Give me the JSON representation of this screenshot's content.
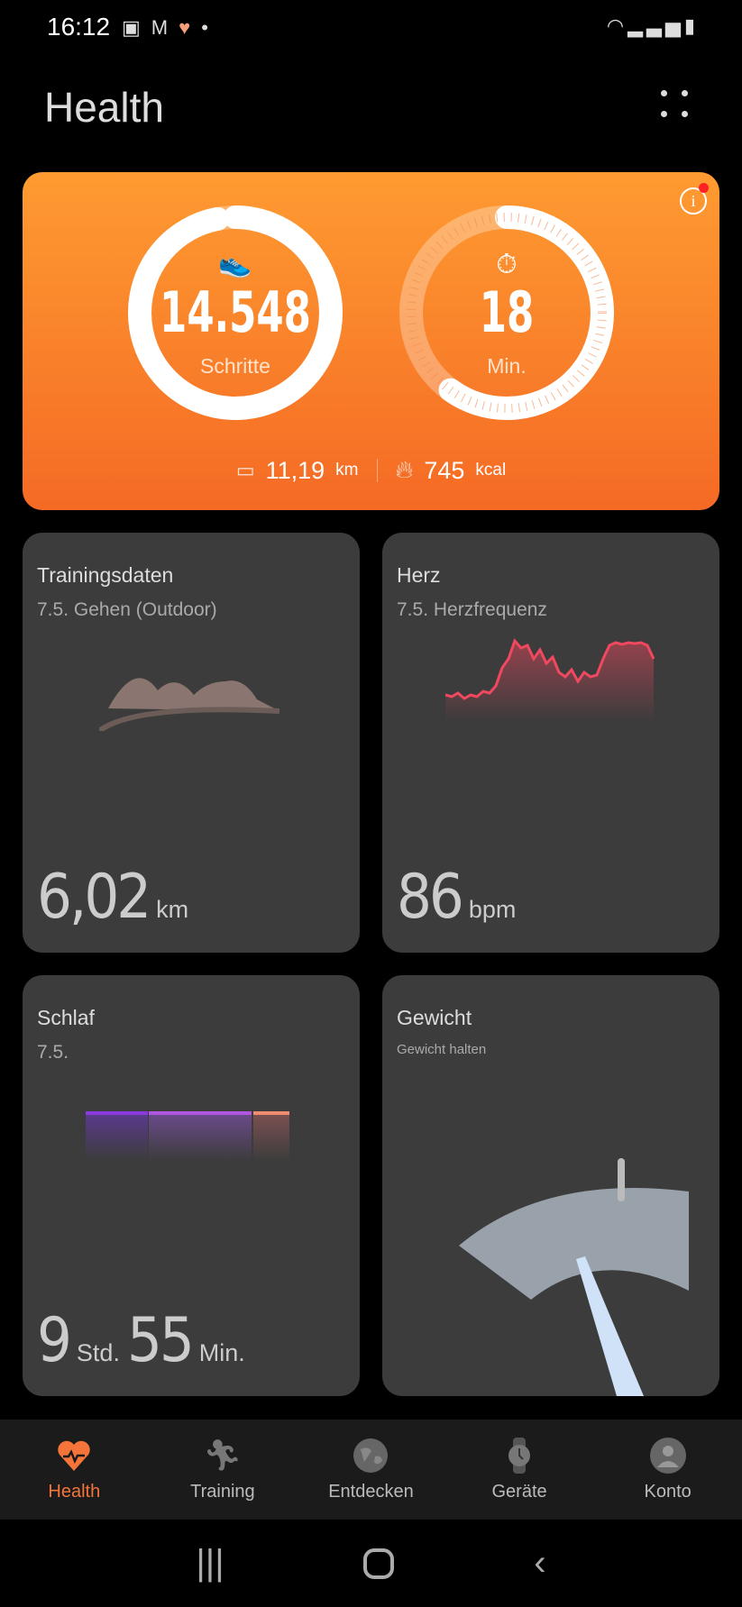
{
  "status_bar": {
    "time": "16:12",
    "icons": [
      "image-icon",
      "gmail-icon",
      "health-heart-icon",
      "dot"
    ],
    "right_icons": [
      "wifi-icon",
      "signal-icon",
      "battery-icon"
    ]
  },
  "header": {
    "title": "Health",
    "menu_icon": "more-grid-icon"
  },
  "summary": {
    "steps": {
      "value": "14.548",
      "label": "Schritte",
      "progress": 0.97
    },
    "active_minutes": {
      "value": "18",
      "label": "Min.",
      "progress": 0.6
    },
    "distance": {
      "value": "11,19",
      "unit": "km"
    },
    "calories": {
      "value": "745",
      "unit": "kcal"
    },
    "accent": "#f78a2c"
  },
  "tiles": {
    "training": {
      "title": "Trainingsdaten",
      "subtitle": "7.5. Gehen (Outdoor)",
      "value": "6,02",
      "unit": "km"
    },
    "heart": {
      "title": "Herz",
      "subtitle": "7.5. Herzfrequenz",
      "value": "86",
      "unit": "bpm",
      "line_color": "#f0485f"
    },
    "sleep": {
      "title": "Schlaf",
      "subtitle": "7.5.",
      "hours": "9",
      "hours_unit": "Std.",
      "minutes": "55",
      "minutes_unit": "Min."
    },
    "weight": {
      "title": "Gewicht",
      "subtitle": "Gewicht halten"
    }
  },
  "nav": {
    "items": [
      {
        "label": "Health",
        "icon": "heart-pulse-icon"
      },
      {
        "label": "Training",
        "icon": "runner-icon"
      },
      {
        "label": "Entdecken",
        "icon": "globe-icon"
      },
      {
        "label": "Geräte",
        "icon": "watch-icon"
      },
      {
        "label": "Konto",
        "icon": "account-icon"
      }
    ],
    "active": "Health",
    "active_color": "#f5743a"
  }
}
